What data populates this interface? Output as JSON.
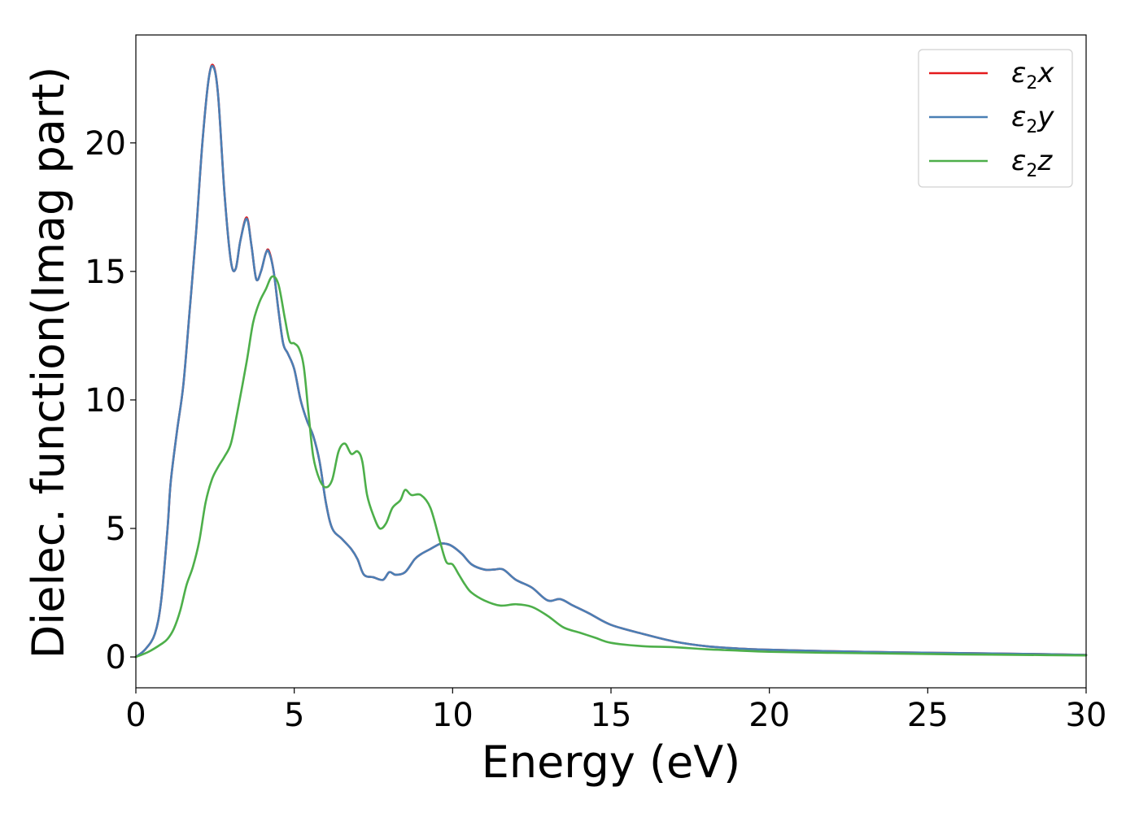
{
  "chart_data": {
    "type": "line",
    "xlabel": "Energy (eV)",
    "ylabel": "Dielec. function(Imag part)",
    "xlim": [
      0,
      30
    ],
    "ylim": [
      -1.2,
      24.2
    ],
    "xticks": [
      0,
      5,
      10,
      15,
      20,
      25,
      30
    ],
    "yticks": [
      0,
      5,
      10,
      15,
      20
    ],
    "grid": false,
    "legend_position": "top-right",
    "series": [
      {
        "name": "ε2x",
        "legend_base": "ε",
        "legend_sub": "2",
        "legend_var": "x",
        "color": "#e41a1c",
        "x": [
          0,
          0.3,
          0.6,
          0.8,
          1.0,
          1.1,
          1.3,
          1.5,
          1.7,
          1.9,
          2.1,
          2.3,
          2.45,
          2.6,
          2.8,
          3.0,
          3.15,
          3.3,
          3.5,
          3.65,
          3.8,
          3.95,
          4.1,
          4.2,
          4.35,
          4.5,
          4.65,
          4.8,
          5.0,
          5.2,
          5.4,
          5.6,
          5.8,
          6.0,
          6.2,
          6.5,
          6.8,
          7.0,
          7.2,
          7.5,
          7.8,
          8.0,
          8.2,
          8.5,
          8.8,
          9.0,
          9.3,
          9.6,
          9.8,
          10.0,
          10.3,
          10.6,
          11.0,
          11.3,
          11.6,
          12.0,
          12.5,
          13.0,
          13.4,
          13.8,
          14.3,
          15.0,
          16.0,
          17.0,
          18.0,
          19.0,
          20.0,
          22.0,
          23.0,
          24.0,
          26.0,
          28.0,
          30.0
        ],
        "values": [
          0,
          0.3,
          0.9,
          2.2,
          5.0,
          6.8,
          8.8,
          10.6,
          13.5,
          16.5,
          20.0,
          22.5,
          23.0,
          21.8,
          18.0,
          15.4,
          15.1,
          16.2,
          17.1,
          16.0,
          14.7,
          15.0,
          15.7,
          15.8,
          15.0,
          13.5,
          12.2,
          11.8,
          11.2,
          10.0,
          9.2,
          8.6,
          7.6,
          6.0,
          5.0,
          4.6,
          4.2,
          3.8,
          3.2,
          3.1,
          3.0,
          3.3,
          3.2,
          3.3,
          3.8,
          4.0,
          4.2,
          4.4,
          4.4,
          4.3,
          4.0,
          3.6,
          3.4,
          3.4,
          3.4,
          3.0,
          2.7,
          2.2,
          2.25,
          2.0,
          1.7,
          1.25,
          0.9,
          0.6,
          0.42,
          0.33,
          0.28,
          0.22,
          0.2,
          0.18,
          0.15,
          0.12,
          0.08
        ]
      },
      {
        "name": "ε2y",
        "legend_base": "ε",
        "legend_sub": "2",
        "legend_var": "y",
        "color": "#4a7fb5",
        "x": [
          0,
          0.3,
          0.6,
          0.8,
          1.0,
          1.1,
          1.3,
          1.5,
          1.7,
          1.9,
          2.1,
          2.3,
          2.45,
          2.6,
          2.8,
          3.0,
          3.15,
          3.3,
          3.5,
          3.65,
          3.8,
          3.95,
          4.1,
          4.2,
          4.35,
          4.5,
          4.65,
          4.8,
          5.0,
          5.2,
          5.4,
          5.6,
          5.8,
          6.0,
          6.2,
          6.5,
          6.8,
          7.0,
          7.2,
          7.5,
          7.8,
          8.0,
          8.2,
          8.5,
          8.8,
          9.0,
          9.3,
          9.6,
          9.8,
          10.0,
          10.3,
          10.6,
          11.0,
          11.3,
          11.6,
          12.0,
          12.5,
          13.0,
          13.4,
          13.8,
          14.3,
          15.0,
          16.0,
          17.0,
          18.0,
          19.0,
          20.0,
          22.0,
          23.0,
          24.0,
          26.0,
          28.0,
          30.0
        ],
        "values": [
          0,
          0.3,
          0.9,
          2.2,
          5.0,
          6.8,
          8.8,
          10.6,
          13.5,
          16.5,
          20.0,
          22.5,
          22.95,
          21.8,
          18.0,
          15.4,
          15.1,
          16.2,
          17.05,
          16.0,
          14.7,
          15.0,
          15.7,
          15.75,
          15.0,
          13.5,
          12.2,
          11.8,
          11.2,
          10.0,
          9.2,
          8.6,
          7.6,
          6.0,
          5.0,
          4.6,
          4.2,
          3.8,
          3.2,
          3.1,
          3.0,
          3.3,
          3.2,
          3.3,
          3.8,
          4.0,
          4.2,
          4.4,
          4.4,
          4.3,
          4.0,
          3.6,
          3.4,
          3.4,
          3.4,
          3.0,
          2.7,
          2.2,
          2.25,
          2.0,
          1.7,
          1.25,
          0.9,
          0.6,
          0.42,
          0.33,
          0.28,
          0.22,
          0.2,
          0.18,
          0.15,
          0.12,
          0.08
        ]
      },
      {
        "name": "ε2z",
        "legend_base": "ε",
        "legend_sub": "2",
        "legend_var": "z",
        "color": "#4daf4a",
        "x": [
          0,
          0.4,
          0.8,
          1.0,
          1.2,
          1.4,
          1.6,
          1.8,
          2.0,
          2.2,
          2.4,
          2.6,
          2.8,
          3.0,
          3.2,
          3.5,
          3.7,
          3.9,
          4.1,
          4.3,
          4.5,
          4.7,
          4.85,
          5.0,
          5.15,
          5.3,
          5.45,
          5.6,
          5.8,
          6.0,
          6.2,
          6.4,
          6.6,
          6.8,
          7.0,
          7.15,
          7.3,
          7.5,
          7.7,
          7.9,
          8.1,
          8.35,
          8.5,
          8.7,
          9.0,
          9.3,
          9.6,
          9.8,
          10.0,
          10.2,
          10.4,
          10.6,
          11.0,
          11.5,
          12.0,
          12.5,
          13.0,
          13.5,
          14.0,
          14.5,
          15.0,
          16.0,
          17.0,
          18.0,
          19.0,
          20.0,
          22.0,
          24.0,
          26.0,
          28.0,
          30.0
        ],
        "values": [
          0,
          0.2,
          0.5,
          0.7,
          1.1,
          1.8,
          2.8,
          3.5,
          4.5,
          6.0,
          6.9,
          7.4,
          7.8,
          8.3,
          9.5,
          11.5,
          13.0,
          13.8,
          14.3,
          14.8,
          14.5,
          13.2,
          12.3,
          12.2,
          12.0,
          11.3,
          9.5,
          7.8,
          6.9,
          6.6,
          6.9,
          8.0,
          8.3,
          7.9,
          8.0,
          7.6,
          6.3,
          5.5,
          5.0,
          5.2,
          5.8,
          6.1,
          6.5,
          6.3,
          6.3,
          5.8,
          4.5,
          3.7,
          3.6,
          3.2,
          2.8,
          2.5,
          2.2,
          2.0,
          2.05,
          1.95,
          1.6,
          1.15,
          0.95,
          0.75,
          0.55,
          0.42,
          0.38,
          0.3,
          0.25,
          0.2,
          0.16,
          0.13,
          0.1,
          0.08,
          0.06
        ]
      }
    ]
  }
}
